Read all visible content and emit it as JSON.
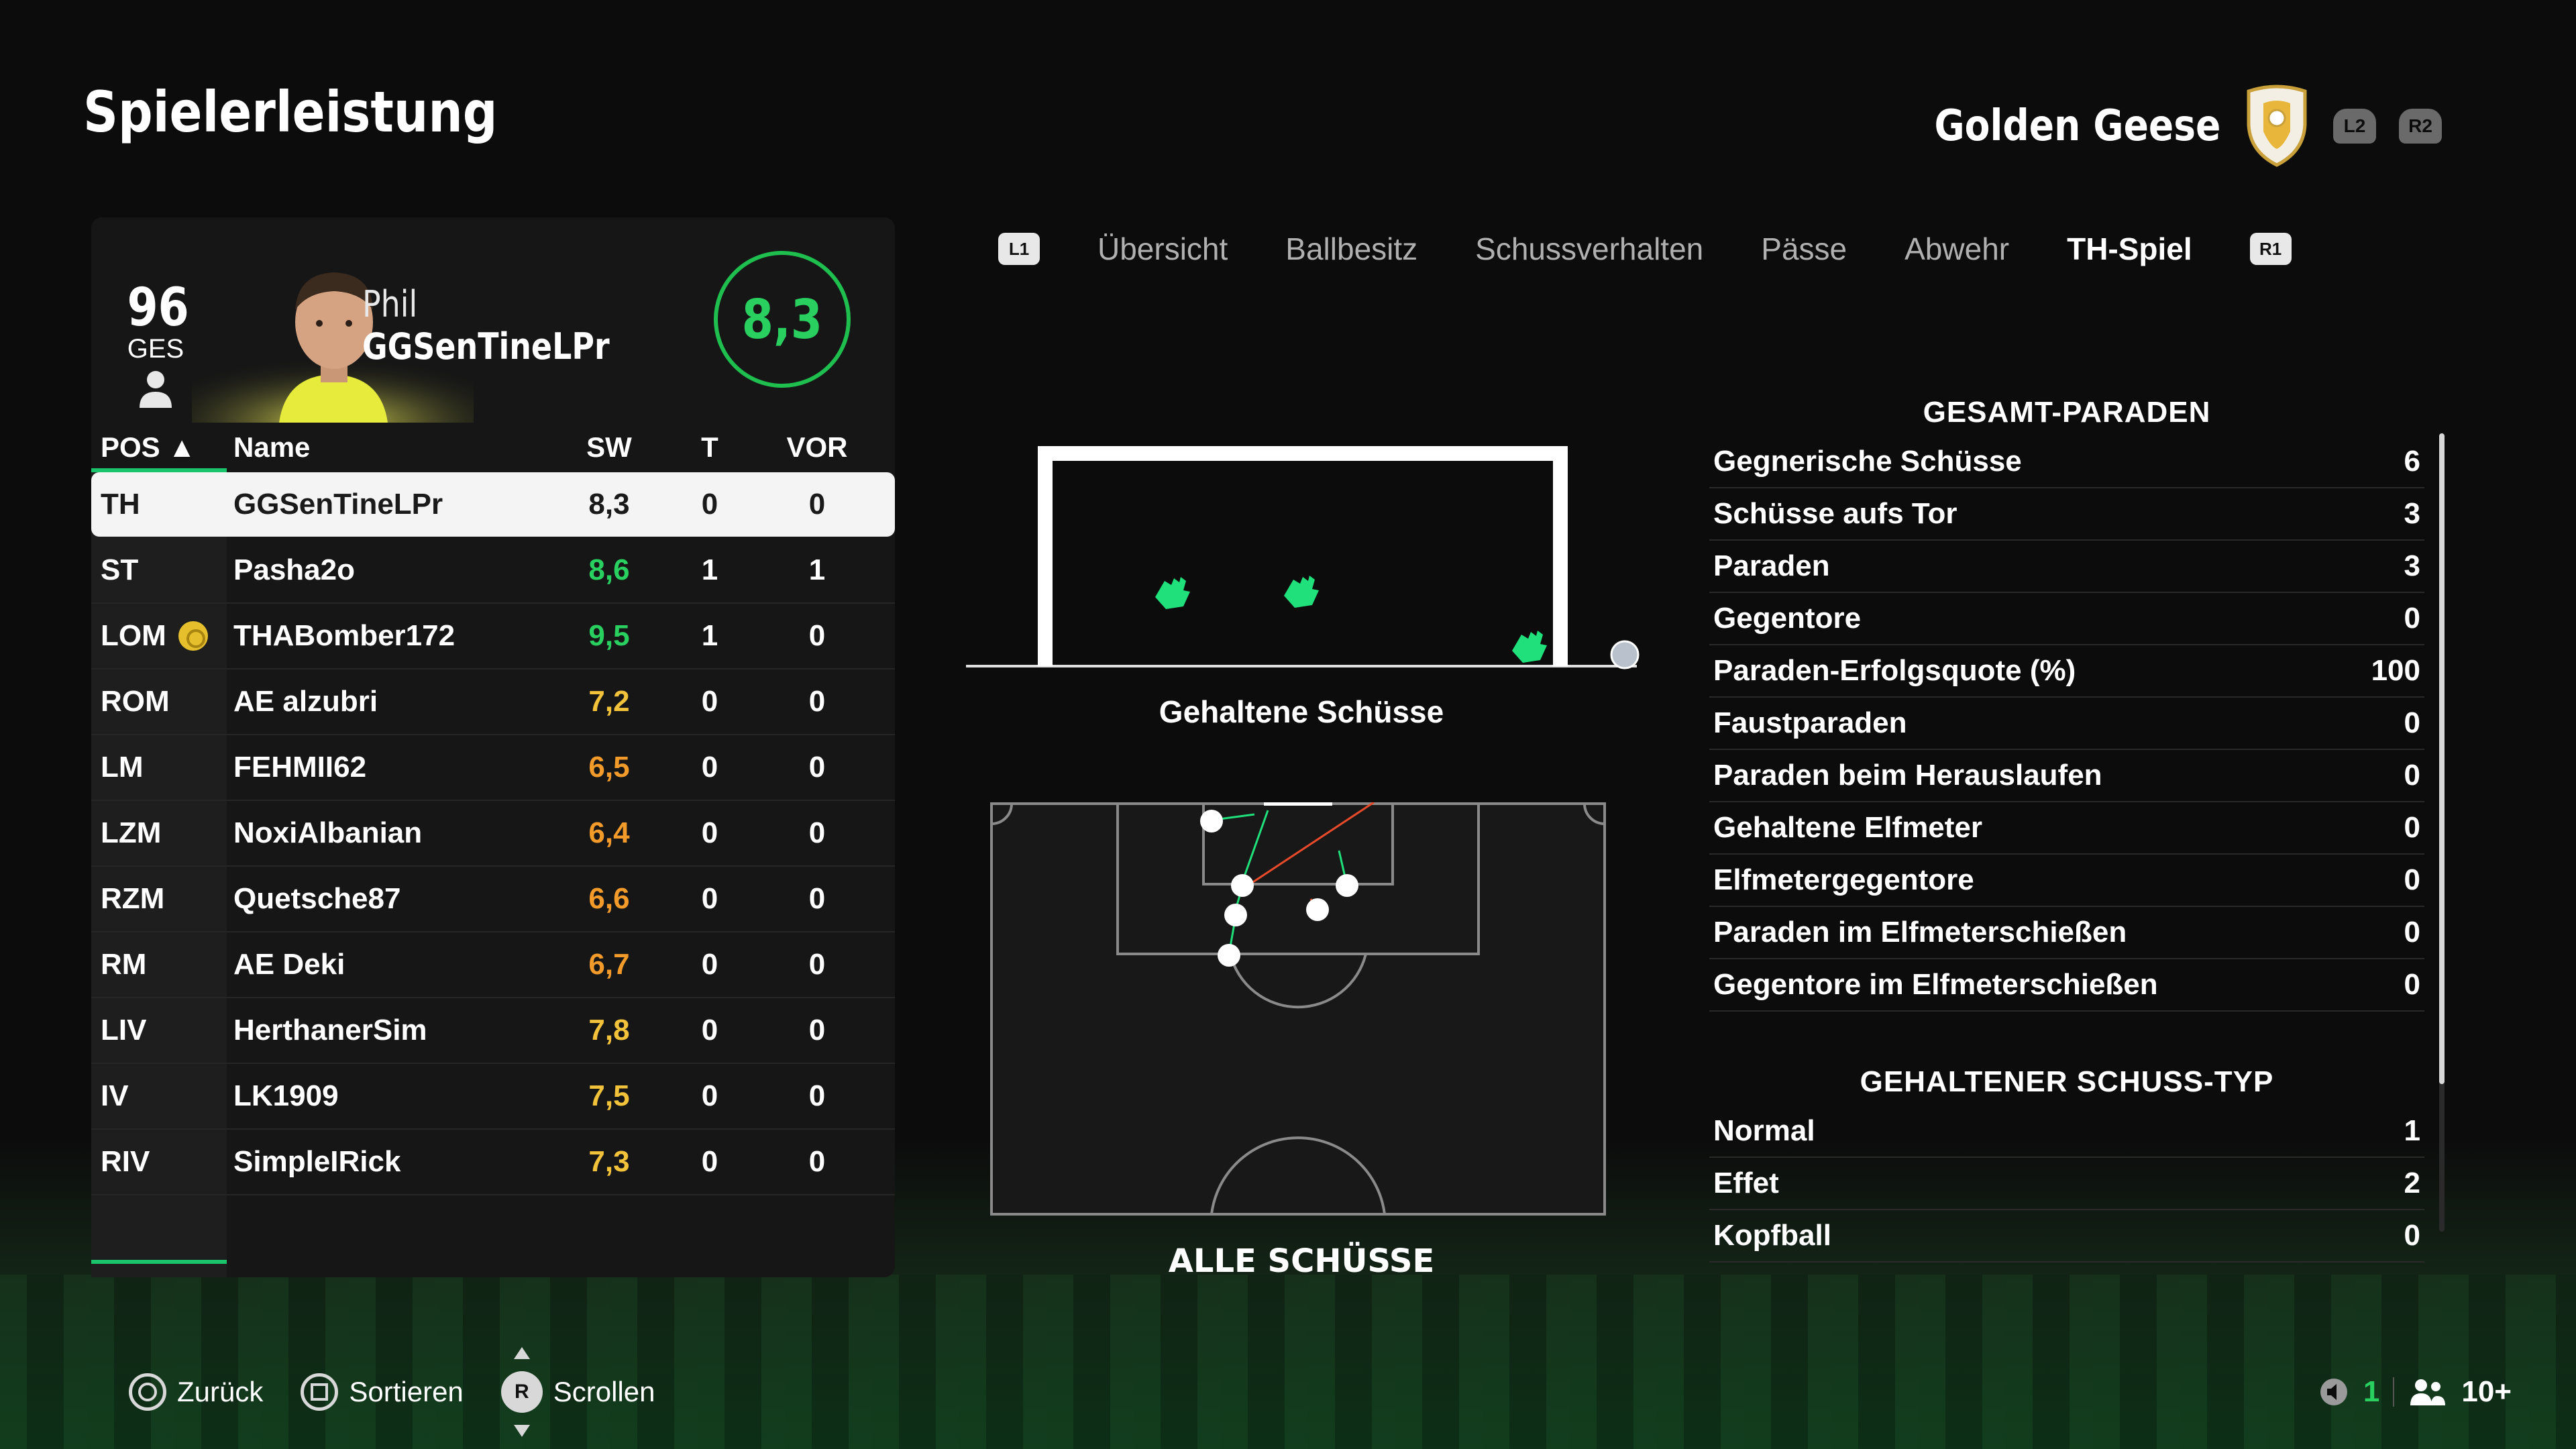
{
  "header": {
    "title": "Spielerleistung",
    "team_name": "Golden Geese",
    "l2": "L2",
    "r2": "R2"
  },
  "player": {
    "overall": "96",
    "overall_label": "GES",
    "first_name": "Phil",
    "last_name": "GGSenTineLPr",
    "rating": "8,3"
  },
  "table": {
    "headers": {
      "pos": "POS ▲",
      "name": "Name",
      "sw": "SW",
      "t": "T",
      "vor": "VOR"
    },
    "rows": [
      {
        "pos": "TH",
        "name": "GGSenTineLPr",
        "sw": "8,3",
        "t": "0",
        "vor": "0",
        "color": "#1a1a1a"
      },
      {
        "pos": "ST",
        "name": "Pasha2o",
        "sw": "8,6",
        "t": "1",
        "vor": "1",
        "color": "#29d060"
      },
      {
        "pos": "LOM",
        "name": "THABomber172",
        "sw": "9,5",
        "t": "1",
        "vor": "0",
        "color": "#29d060"
      },
      {
        "pos": "ROM",
        "name": "AE alzubri",
        "sw": "7,2",
        "t": "0",
        "vor": "0",
        "color": "#f2c23a"
      },
      {
        "pos": "LM",
        "name": "FEHMII62",
        "sw": "6,5",
        "t": "0",
        "vor": "0",
        "color": "#f29a2a"
      },
      {
        "pos": "LZM",
        "name": "NoxiAlbanian",
        "sw": "6,4",
        "t": "0",
        "vor": "0",
        "color": "#f29a2a"
      },
      {
        "pos": "RZM",
        "name": "Quetsche87",
        "sw": "6,6",
        "t": "0",
        "vor": "0",
        "color": "#f29a2a"
      },
      {
        "pos": "RM",
        "name": "AE Deki",
        "sw": "6,7",
        "t": "0",
        "vor": "0",
        "color": "#f29a2a"
      },
      {
        "pos": "LIV",
        "name": "HerthanerSim",
        "sw": "7,8",
        "t": "0",
        "vor": "0",
        "color": "#f2c23a"
      },
      {
        "pos": "IV",
        "name": "LK1909",
        "sw": "7,5",
        "t": "0",
        "vor": "0",
        "color": "#f2c23a"
      },
      {
        "pos": "RIV",
        "name": "SimpleIRick",
        "sw": "7,3",
        "t": "0",
        "vor": "0",
        "color": "#f2c23a"
      }
    ]
  },
  "tabs": {
    "l1": "L1",
    "r1": "R1",
    "items": [
      "Übersicht",
      "Ballbesitz",
      "Schussverhalten",
      "Pässe",
      "Abwehr",
      "TH-Spiel"
    ],
    "active_index": 5
  },
  "viz": {
    "goal_caption": "Gehaltene Schüsse",
    "pitch_caption": "ALLE SCHÜSSE"
  },
  "stats": {
    "section1_title": "GESAMT-PARADEN",
    "section1": [
      {
        "label": "Gegnerische Schüsse",
        "value": "6"
      },
      {
        "label": "Schüsse aufs Tor",
        "value": "3"
      },
      {
        "label": "Paraden",
        "value": "3"
      },
      {
        "label": "Gegentore",
        "value": "0"
      },
      {
        "label": "Paraden-Erfolgsquote (%)",
        "value": "100"
      },
      {
        "label": "Faustparaden",
        "value": "0"
      },
      {
        "label": "Paraden beim Herauslaufen",
        "value": "0"
      },
      {
        "label": "Gehaltene Elfmeter",
        "value": "0"
      },
      {
        "label": "Elfmetergegentore",
        "value": "0"
      },
      {
        "label": "Paraden im Elfmeterschießen",
        "value": "0"
      },
      {
        "label": "Gegentore im Elfmeterschießen",
        "value": "0"
      }
    ],
    "section2_title": "GEHALTENER SCHUSS-TYP",
    "section2": [
      {
        "label": "Normal",
        "value": "1"
      },
      {
        "label": "Effet",
        "value": "2"
      },
      {
        "label": "Kopfball",
        "value": "0"
      }
    ]
  },
  "footer": {
    "back": "Zurück",
    "sort": "Sortieren",
    "scroll": "Scrollen",
    "rstick": "R",
    "count": "1",
    "players": "10+"
  },
  "colors": {
    "accent_green": "#19c46a",
    "save_glove": "#1fe07a"
  }
}
